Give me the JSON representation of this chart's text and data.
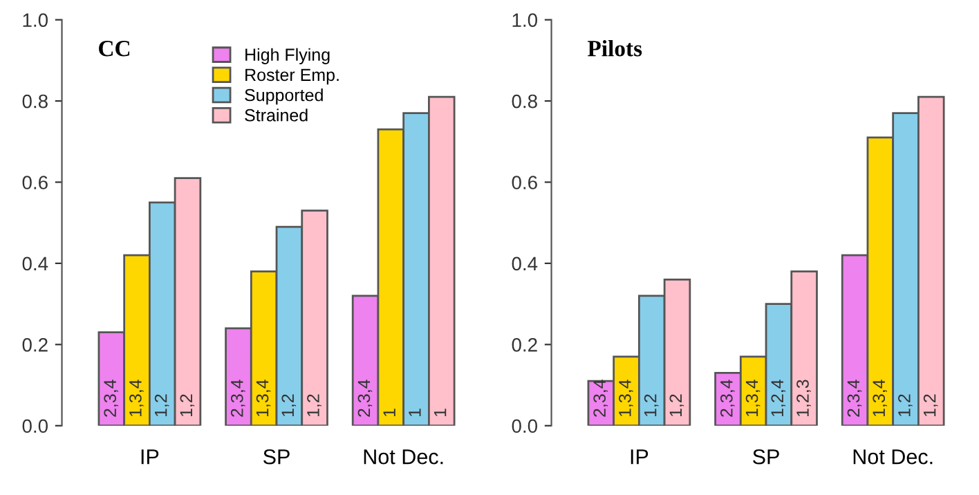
{
  "chart_data": [
    {
      "type": "bar",
      "title": "CC",
      "categories": [
        "IP",
        "SP",
        "Not Dec."
      ],
      "ylim": [
        0,
        1
      ],
      "yticks": [
        {
          "value": 0,
          "label": "0.0"
        },
        {
          "value": 0.2,
          "label": "0.2"
        },
        {
          "value": 0.4,
          "label": "0.4"
        },
        {
          "value": 0.6,
          "label": "0.6"
        },
        {
          "value": 0.8,
          "label": "0.8"
        },
        {
          "value": 1,
          "label": "1.0"
        }
      ],
      "grid": false,
      "legend": "top",
      "series": [
        {
          "name": "High Flying",
          "color": "#ee82ee",
          "values": [
            0.23,
            0.24,
            0.32
          ]
        },
        {
          "name": "Roster Emp.",
          "color": "#ffd700",
          "values": [
            0.42,
            0.38,
            0.73
          ]
        },
        {
          "name": "Supported",
          "color": "#87ceeb",
          "values": [
            0.55,
            0.49,
            0.77
          ]
        },
        {
          "name": "Strained",
          "color": "#ffc0cb",
          "values": [
            0.61,
            0.53,
            0.81
          ]
        }
      ],
      "annotations": [
        "2,3,4",
        "2,3,4",
        "2,3,4",
        "1,3,4",
        "1,3,4",
        "1",
        "1,2",
        "1,2",
        "1",
        "1,2",
        "1,2",
        "1"
      ]
    },
    {
      "type": "bar",
      "title": "Pilots",
      "categories": [
        "IP",
        "SP",
        "Not Dec."
      ],
      "ylim": [
        0,
        1
      ],
      "yticks": [
        {
          "value": 0,
          "label": "0.0"
        },
        {
          "value": 0.2,
          "label": "0.2"
        },
        {
          "value": 0.4,
          "label": "0.4"
        },
        {
          "value": 0.6,
          "label": "0.6"
        },
        {
          "value": 0.8,
          "label": "0.8"
        },
        {
          "value": 1,
          "label": "1.0"
        }
      ],
      "grid": false,
      "series": [
        {
          "color": "#ee82ee",
          "values": [
            0.11,
            0.13,
            0.42
          ]
        },
        {
          "color": "#ffd700",
          "values": [
            0.17,
            0.17,
            0.71
          ]
        },
        {
          "color": "#87ceeb",
          "values": [
            0.32,
            0.3,
            0.77
          ]
        },
        {
          "color": "#ffc0cb",
          "values": [
            0.36,
            0.38,
            0.81
          ]
        }
      ],
      "annotations": [
        "2,3,4",
        "2,3,4",
        "2,3,4",
        "1,3,4",
        "1,3,4",
        "1,3,4",
        "1,2",
        "1,2,4",
        "1,2",
        "1,2",
        "1,2,3",
        "1,2"
      ]
    }
  ]
}
